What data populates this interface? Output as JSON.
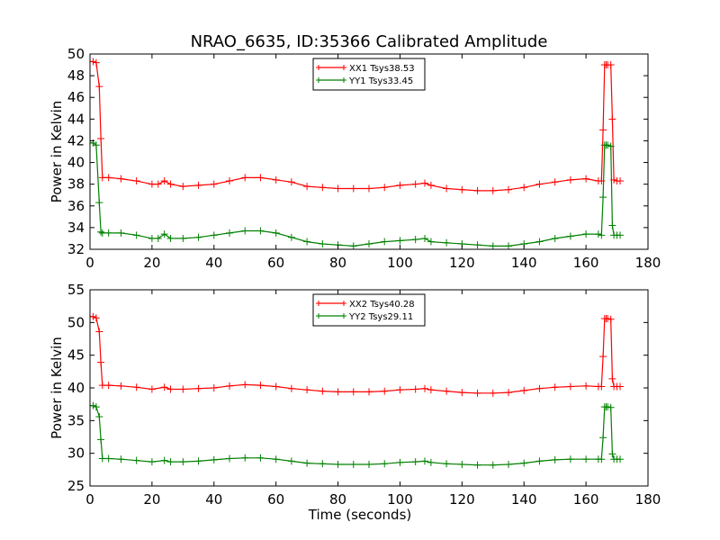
{
  "figure_title": "NRAO_6635, ID:35366 Calibrated Amplitude",
  "chart_data": [
    {
      "type": "line",
      "ylabel": "Power in Kelvin",
      "xlabel": "",
      "xlim": [
        0,
        180
      ],
      "ylim": [
        32,
        50
      ],
      "xticks": [
        0,
        20,
        40,
        60,
        80,
        100,
        120,
        140,
        160,
        180
      ],
      "yticks": [
        32,
        34,
        36,
        38,
        40,
        42,
        44,
        46,
        48,
        50
      ],
      "legend_position": "top-center",
      "series": [
        {
          "name": "XX1 Tsys38.53",
          "color": "#ff0000",
          "x": [
            0,
            1,
            2,
            3,
            3.5,
            4,
            6,
            10,
            15,
            20,
            22,
            24,
            26,
            30,
            35,
            40,
            45,
            50,
            55,
            60,
            65,
            70,
            75,
            80,
            85,
            90,
            95,
            100,
            105,
            108,
            110,
            115,
            120,
            125,
            130,
            135,
            140,
            145,
            150,
            155,
            160,
            164,
            165,
            165.5,
            166,
            166.5,
            167,
            168,
            168.5,
            169,
            170,
            171
          ],
          "y": [
            49.3,
            49.3,
            49.2,
            47.0,
            42.2,
            38.6,
            38.6,
            38.5,
            38.3,
            38.0,
            38.0,
            38.3,
            38.0,
            37.8,
            37.9,
            38.0,
            38.3,
            38.6,
            38.6,
            38.4,
            38.2,
            37.8,
            37.7,
            37.6,
            37.6,
            37.6,
            37.7,
            37.9,
            38.0,
            38.1,
            37.9,
            37.6,
            37.5,
            37.4,
            37.4,
            37.5,
            37.7,
            38.0,
            38.2,
            38.4,
            38.5,
            38.3,
            38.3,
            43.0,
            49.0,
            49.0,
            49.0,
            49.0,
            44.0,
            38.4,
            38.3,
            38.3
          ]
        },
        {
          "name": "YY1 Tsys33.45",
          "color": "#008000",
          "x": [
            0,
            1,
            2,
            3,
            3.5,
            4,
            6,
            10,
            15,
            20,
            22,
            24,
            26,
            30,
            35,
            40,
            45,
            50,
            55,
            60,
            65,
            70,
            75,
            80,
            85,
            90,
            95,
            100,
            105,
            108,
            110,
            115,
            120,
            125,
            130,
            135,
            140,
            145,
            150,
            155,
            160,
            164,
            165,
            165.5,
            166,
            166.5,
            167,
            168,
            168.5,
            169,
            170,
            171
          ],
          "y": [
            41.8,
            41.8,
            41.6,
            36.3,
            33.6,
            33.5,
            33.5,
            33.5,
            33.3,
            33.0,
            33.0,
            33.4,
            33.0,
            33.0,
            33.1,
            33.3,
            33.5,
            33.7,
            33.7,
            33.5,
            33.1,
            32.7,
            32.5,
            32.4,
            32.3,
            32.5,
            32.7,
            32.8,
            32.9,
            33.0,
            32.7,
            32.6,
            32.5,
            32.4,
            32.3,
            32.3,
            32.5,
            32.7,
            33.0,
            33.2,
            33.4,
            33.4,
            33.3,
            36.8,
            41.6,
            41.6,
            41.6,
            41.5,
            34.2,
            33.3,
            33.3,
            33.3
          ]
        }
      ]
    },
    {
      "type": "line",
      "ylabel": "Power in Kelvin",
      "xlabel": "Time (seconds)",
      "xlim": [
        0,
        180
      ],
      "ylim": [
        25,
        55
      ],
      "xticks": [
        0,
        20,
        40,
        60,
        80,
        100,
        120,
        140,
        160,
        180
      ],
      "yticks": [
        25,
        30,
        35,
        40,
        45,
        50,
        55
      ],
      "legend_position": "top-center",
      "series": [
        {
          "name": "XX2 Tsys40.28",
          "color": "#ff0000",
          "x": [
            0,
            1,
            2,
            3,
            3.5,
            4,
            6,
            10,
            15,
            20,
            24,
            26,
            30,
            35,
            40,
            45,
            50,
            55,
            60,
            65,
            70,
            75,
            80,
            85,
            90,
            95,
            100,
            105,
            108,
            110,
            115,
            120,
            125,
            130,
            135,
            140,
            145,
            150,
            155,
            160,
            164,
            165,
            165.5,
            166,
            166.5,
            167,
            168,
            168.5,
            169,
            170,
            171
          ],
          "y": [
            50.9,
            50.9,
            50.7,
            48.6,
            43.9,
            40.4,
            40.4,
            40.3,
            40.1,
            39.8,
            40.1,
            39.8,
            39.8,
            39.9,
            40.0,
            40.3,
            40.5,
            40.4,
            40.2,
            39.9,
            39.7,
            39.5,
            39.4,
            39.4,
            39.4,
            39.5,
            39.7,
            39.8,
            39.9,
            39.7,
            39.5,
            39.3,
            39.2,
            39.2,
            39.3,
            39.6,
            39.9,
            40.1,
            40.2,
            40.3,
            40.2,
            40.2,
            44.8,
            50.6,
            50.6,
            50.6,
            50.5,
            41.4,
            40.2,
            40.2,
            40.2
          ]
        },
        {
          "name": "YY2 Tsys29.11",
          "color": "#008000",
          "x": [
            0,
            1,
            2,
            3,
            3.5,
            4,
            6,
            10,
            15,
            20,
            24,
            26,
            30,
            35,
            40,
            45,
            50,
            55,
            60,
            65,
            70,
            75,
            80,
            85,
            90,
            95,
            100,
            105,
            108,
            110,
            115,
            120,
            125,
            130,
            135,
            140,
            145,
            150,
            155,
            160,
            164,
            165,
            165.5,
            166,
            166.5,
            167,
            168,
            168.5,
            169,
            170,
            171
          ],
          "y": [
            37.3,
            37.3,
            37.1,
            35.6,
            32.1,
            29.2,
            29.2,
            29.1,
            28.9,
            28.7,
            28.9,
            28.7,
            28.7,
            28.8,
            29.0,
            29.2,
            29.3,
            29.3,
            29.1,
            28.8,
            28.5,
            28.4,
            28.3,
            28.3,
            28.3,
            28.4,
            28.6,
            28.7,
            28.8,
            28.6,
            28.4,
            28.3,
            28.2,
            28.2,
            28.3,
            28.5,
            28.8,
            29.0,
            29.1,
            29.1,
            29.1,
            29.1,
            32.4,
            37.1,
            37.1,
            37.1,
            37.0,
            29.9,
            29.1,
            29.1,
            29.1
          ]
        }
      ]
    }
  ]
}
